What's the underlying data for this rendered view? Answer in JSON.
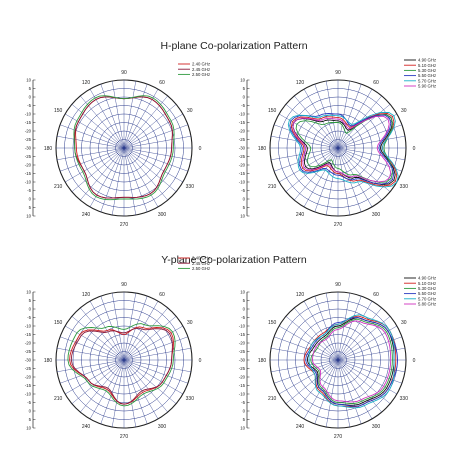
{
  "sections": [
    {
      "title": "H-plane Co-polarization Pattern"
    },
    {
      "title": "Y-plane Co-polarization Pattern"
    }
  ],
  "chart_data": [
    {
      "type": "polar",
      "title": "H-plane Co-polarization Pattern",
      "angle_ticks": [
        "90",
        "60",
        "30",
        "0",
        "330",
        "300",
        "270",
        "240",
        "210",
        "180",
        "150",
        "120"
      ],
      "radial_ticks": [
        10,
        5,
        0,
        -5,
        -10,
        -15,
        -20,
        -25,
        -30,
        -25,
        -20,
        -15,
        -10,
        -5,
        0,
        5,
        10
      ],
      "rlim": [
        -30,
        10
      ],
      "grid": true,
      "legend_position": "top-right",
      "series": [
        {
          "name": "2.40 GHz",
          "color": "#d22020",
          "angles": [
            0,
            30,
            60,
            90,
            120,
            150,
            180,
            210,
            240,
            270,
            300,
            330
          ],
          "values": [
            -2,
            1,
            3,
            -1,
            3,
            1,
            -2,
            -3,
            2,
            -1,
            1,
            -3
          ]
        },
        {
          "name": "2.45 GHz",
          "color": "#8a1a3a",
          "angles": [
            0,
            30,
            60,
            90,
            120,
            150,
            180,
            210,
            240,
            270,
            300,
            330
          ],
          "values": [
            -2,
            1,
            3,
            -1,
            3,
            1,
            -1,
            -3,
            2,
            -1,
            1,
            -3
          ]
        },
        {
          "name": "2.50 GHz",
          "color": "#2e9a3e",
          "angles": [
            0,
            30,
            60,
            90,
            120,
            150,
            180,
            210,
            240,
            270,
            300,
            330
          ],
          "values": [
            -1,
            2,
            4,
            -1,
            4,
            2,
            -1,
            -2,
            3,
            0,
            2,
            -2
          ]
        }
      ]
    },
    {
      "type": "polar",
      "title": "H-plane Co-polarization Pattern",
      "angle_ticks": [
        "90",
        "60",
        "30",
        "0",
        "330",
        "300",
        "270",
        "240",
        "210",
        "180",
        "150",
        "120"
      ],
      "radial_ticks": [
        10,
        5,
        0,
        -5,
        -10,
        -15,
        -20,
        -25,
        -30,
        -25,
        -20,
        -15,
        -10,
        -5,
        0,
        5,
        10
      ],
      "rlim": [
        -30,
        10
      ],
      "grid": true,
      "legend_position": "top-right",
      "series": [
        {
          "name": "4.90 GHz",
          "color": "#111111",
          "angles": [
            0,
            30,
            60,
            90,
            120,
            150,
            180,
            210,
            240,
            270,
            300,
            330
          ],
          "values": [
            -5,
            6,
            -18,
            -14,
            -12,
            0,
            -12,
            -8,
            -20,
            -16,
            -10,
            8
          ]
        },
        {
          "name": "5.10 GHz",
          "color": "#d22020",
          "angles": [
            0,
            30,
            60,
            90,
            120,
            150,
            180,
            210,
            240,
            270,
            300,
            330
          ],
          "values": [
            -4,
            7,
            -16,
            -12,
            -10,
            1,
            -10,
            -6,
            -18,
            -15,
            -8,
            9
          ]
        },
        {
          "name": "5.30 GHz",
          "color": "#2e9a3e",
          "angles": [
            0,
            30,
            60,
            90,
            120,
            150,
            180,
            210,
            240,
            270,
            300,
            330
          ],
          "values": [
            -3,
            6,
            -20,
            -15,
            -14,
            -2,
            -14,
            -10,
            -22,
            -18,
            -12,
            6
          ]
        },
        {
          "name": "5.50 GHz",
          "color": "#2a3ac0",
          "angles": [
            0,
            30,
            60,
            90,
            120,
            150,
            180,
            210,
            240,
            270,
            300,
            330
          ],
          "values": [
            -6,
            5,
            -15,
            -10,
            -8,
            2,
            -9,
            -5,
            -16,
            -14,
            -9,
            7
          ]
        },
        {
          "name": "5.70 GHz",
          "color": "#1ab0c8",
          "angles": [
            0,
            30,
            60,
            90,
            120,
            150,
            180,
            210,
            240,
            270,
            300,
            330
          ],
          "values": [
            -4,
            8,
            -14,
            -11,
            -9,
            3,
            -8,
            -4,
            -15,
            -12,
            -7,
            10
          ]
        },
        {
          "name": "5.90 GHz",
          "color": "#d030c0",
          "angles": [
            0,
            30,
            60,
            90,
            120,
            150,
            180,
            210,
            240,
            270,
            300,
            330
          ],
          "values": [
            -7,
            4,
            -17,
            -13,
            -11,
            0,
            -11,
            -7,
            -19,
            -16,
            -11,
            5
          ]
        }
      ]
    },
    {
      "type": "polar",
      "title": "Y-plane Co-polarization Pattern",
      "angle_ticks": [
        "90",
        "60",
        "30",
        "0",
        "330",
        "300",
        "270",
        "240",
        "210",
        "180",
        "150",
        "120"
      ],
      "radial_ticks": [
        10,
        5,
        0,
        -5,
        -10,
        -15,
        -20,
        -25,
        -30,
        -25,
        -20,
        -15,
        -10,
        -5,
        0,
        5,
        10
      ],
      "rlim": [
        -30,
        10
      ],
      "grid": true,
      "legend_position": "top-right",
      "series": [
        {
          "name": "2.40 GHz",
          "color": "#d22020",
          "angles": [
            0,
            30,
            60,
            90,
            120,
            150,
            180,
            210,
            240,
            270,
            300,
            330
          ],
          "values": [
            -2,
            2,
            -8,
            -15,
            -10,
            0,
            2,
            -6,
            -10,
            -4,
            -8,
            -4
          ]
        },
        {
          "name": "2.45 GHz",
          "color": "#8a1a3a",
          "angles": [
            0,
            30,
            60,
            90,
            120,
            150,
            180,
            210,
            240,
            270,
            300,
            330
          ],
          "values": [
            -2,
            1,
            -9,
            -14,
            -11,
            -1,
            1,
            -6,
            -11,
            -4,
            -9,
            -4
          ]
        },
        {
          "name": "2.50 GHz",
          "color": "#2e9a3e",
          "angles": [
            0,
            30,
            60,
            90,
            120,
            150,
            180,
            210,
            240,
            270,
            300,
            330
          ],
          "values": [
            -1,
            3,
            -6,
            -12,
            -8,
            2,
            3,
            -5,
            -9,
            -3,
            -7,
            -3
          ]
        }
      ]
    },
    {
      "type": "polar",
      "title": "Y-plane Co-polarization Pattern",
      "angle_ticks": [
        "90",
        "60",
        "30",
        "0",
        "330",
        "300",
        "270",
        "240",
        "210",
        "180",
        "150",
        "120"
      ],
      "radial_ticks": [
        10,
        5,
        0,
        -5,
        -10,
        -15,
        -20,
        -25,
        -30,
        -25,
        -20,
        -15,
        -10,
        -5,
        0,
        5,
        10
      ],
      "rlim": [
        -30,
        10
      ],
      "grid": true,
      "legend_position": "top-right",
      "series": [
        {
          "name": "4.90 GHz",
          "color": "#111111",
          "angles": [
            0,
            30,
            60,
            90,
            120,
            150,
            180,
            210,
            240,
            270,
            300,
            330
          ],
          "values": [
            3,
            4,
            -2,
            -10,
            -14,
            -14,
            -12,
            -16,
            -10,
            -4,
            -1,
            3
          ]
        },
        {
          "name": "5.10 GHz",
          "color": "#d22020",
          "angles": [
            0,
            30,
            60,
            90,
            120,
            150,
            180,
            210,
            240,
            270,
            300,
            330
          ],
          "values": [
            4,
            5,
            -1,
            -9,
            -12,
            -12,
            -10,
            -14,
            -9,
            -3,
            0,
            4
          ]
        },
        {
          "name": "5.30 GHz",
          "color": "#2e9a3e",
          "angles": [
            0,
            30,
            60,
            90,
            120,
            150,
            180,
            210,
            240,
            270,
            300,
            330
          ],
          "values": [
            2,
            3,
            -3,
            -11,
            -15,
            -16,
            -14,
            -17,
            -11,
            -5,
            -2,
            2
          ]
        },
        {
          "name": "5.50 GHz",
          "color": "#2a3ac0",
          "angles": [
            0,
            30,
            60,
            90,
            120,
            150,
            180,
            210,
            240,
            270,
            300,
            330
          ],
          "values": [
            5,
            4,
            -2,
            -8,
            -13,
            -13,
            -11,
            -15,
            -10,
            -4,
            0,
            4
          ]
        },
        {
          "name": "5.70 GHz",
          "color": "#1ab0c8",
          "angles": [
            0,
            30,
            60,
            90,
            120,
            150,
            180,
            210,
            240,
            270,
            300,
            330
          ],
          "values": [
            3,
            5,
            0,
            -9,
            -13,
            -12,
            -13,
            -14,
            -8,
            -3,
            1,
            5
          ]
        },
        {
          "name": "5.80 GHz",
          "color": "#d030c0",
          "angles": [
            0,
            30,
            60,
            90,
            120,
            150,
            180,
            210,
            240,
            270,
            300,
            330
          ],
          "values": [
            1,
            2,
            -4,
            -12,
            -16,
            -15,
            -15,
            -18,
            -12,
            -6,
            -3,
            1
          ]
        }
      ]
    }
  ]
}
